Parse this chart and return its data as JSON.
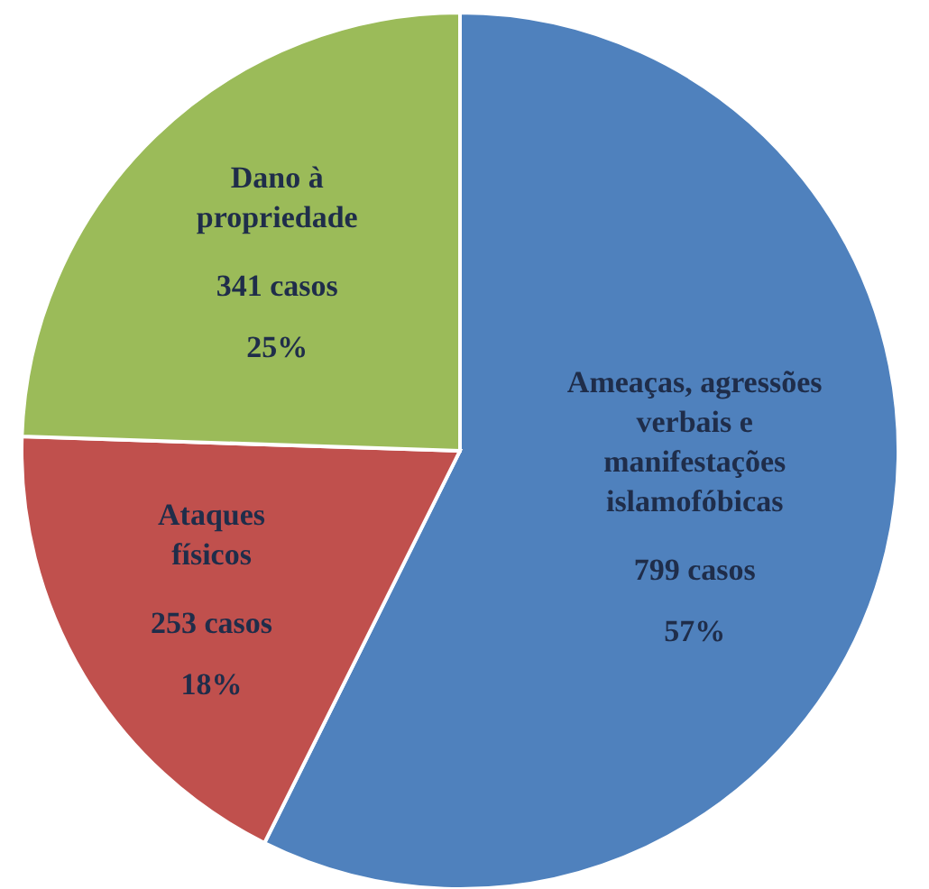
{
  "chart_data": {
    "type": "pie",
    "categories": [
      "Ameaças, agressões\nverbais e\nmanifestações\nislamofóbicas",
      "Ataques\nfísicos",
      "Dano à\npropriedade"
    ],
    "values": [
      799,
      253,
      341
    ],
    "value_labels": [
      "799 casos\n57%",
      "253 casos\n18%",
      "341 casos\n25%"
    ],
    "colors": [
      "#4f81bd",
      "#c0504d",
      "#9bbb59"
    ]
  }
}
